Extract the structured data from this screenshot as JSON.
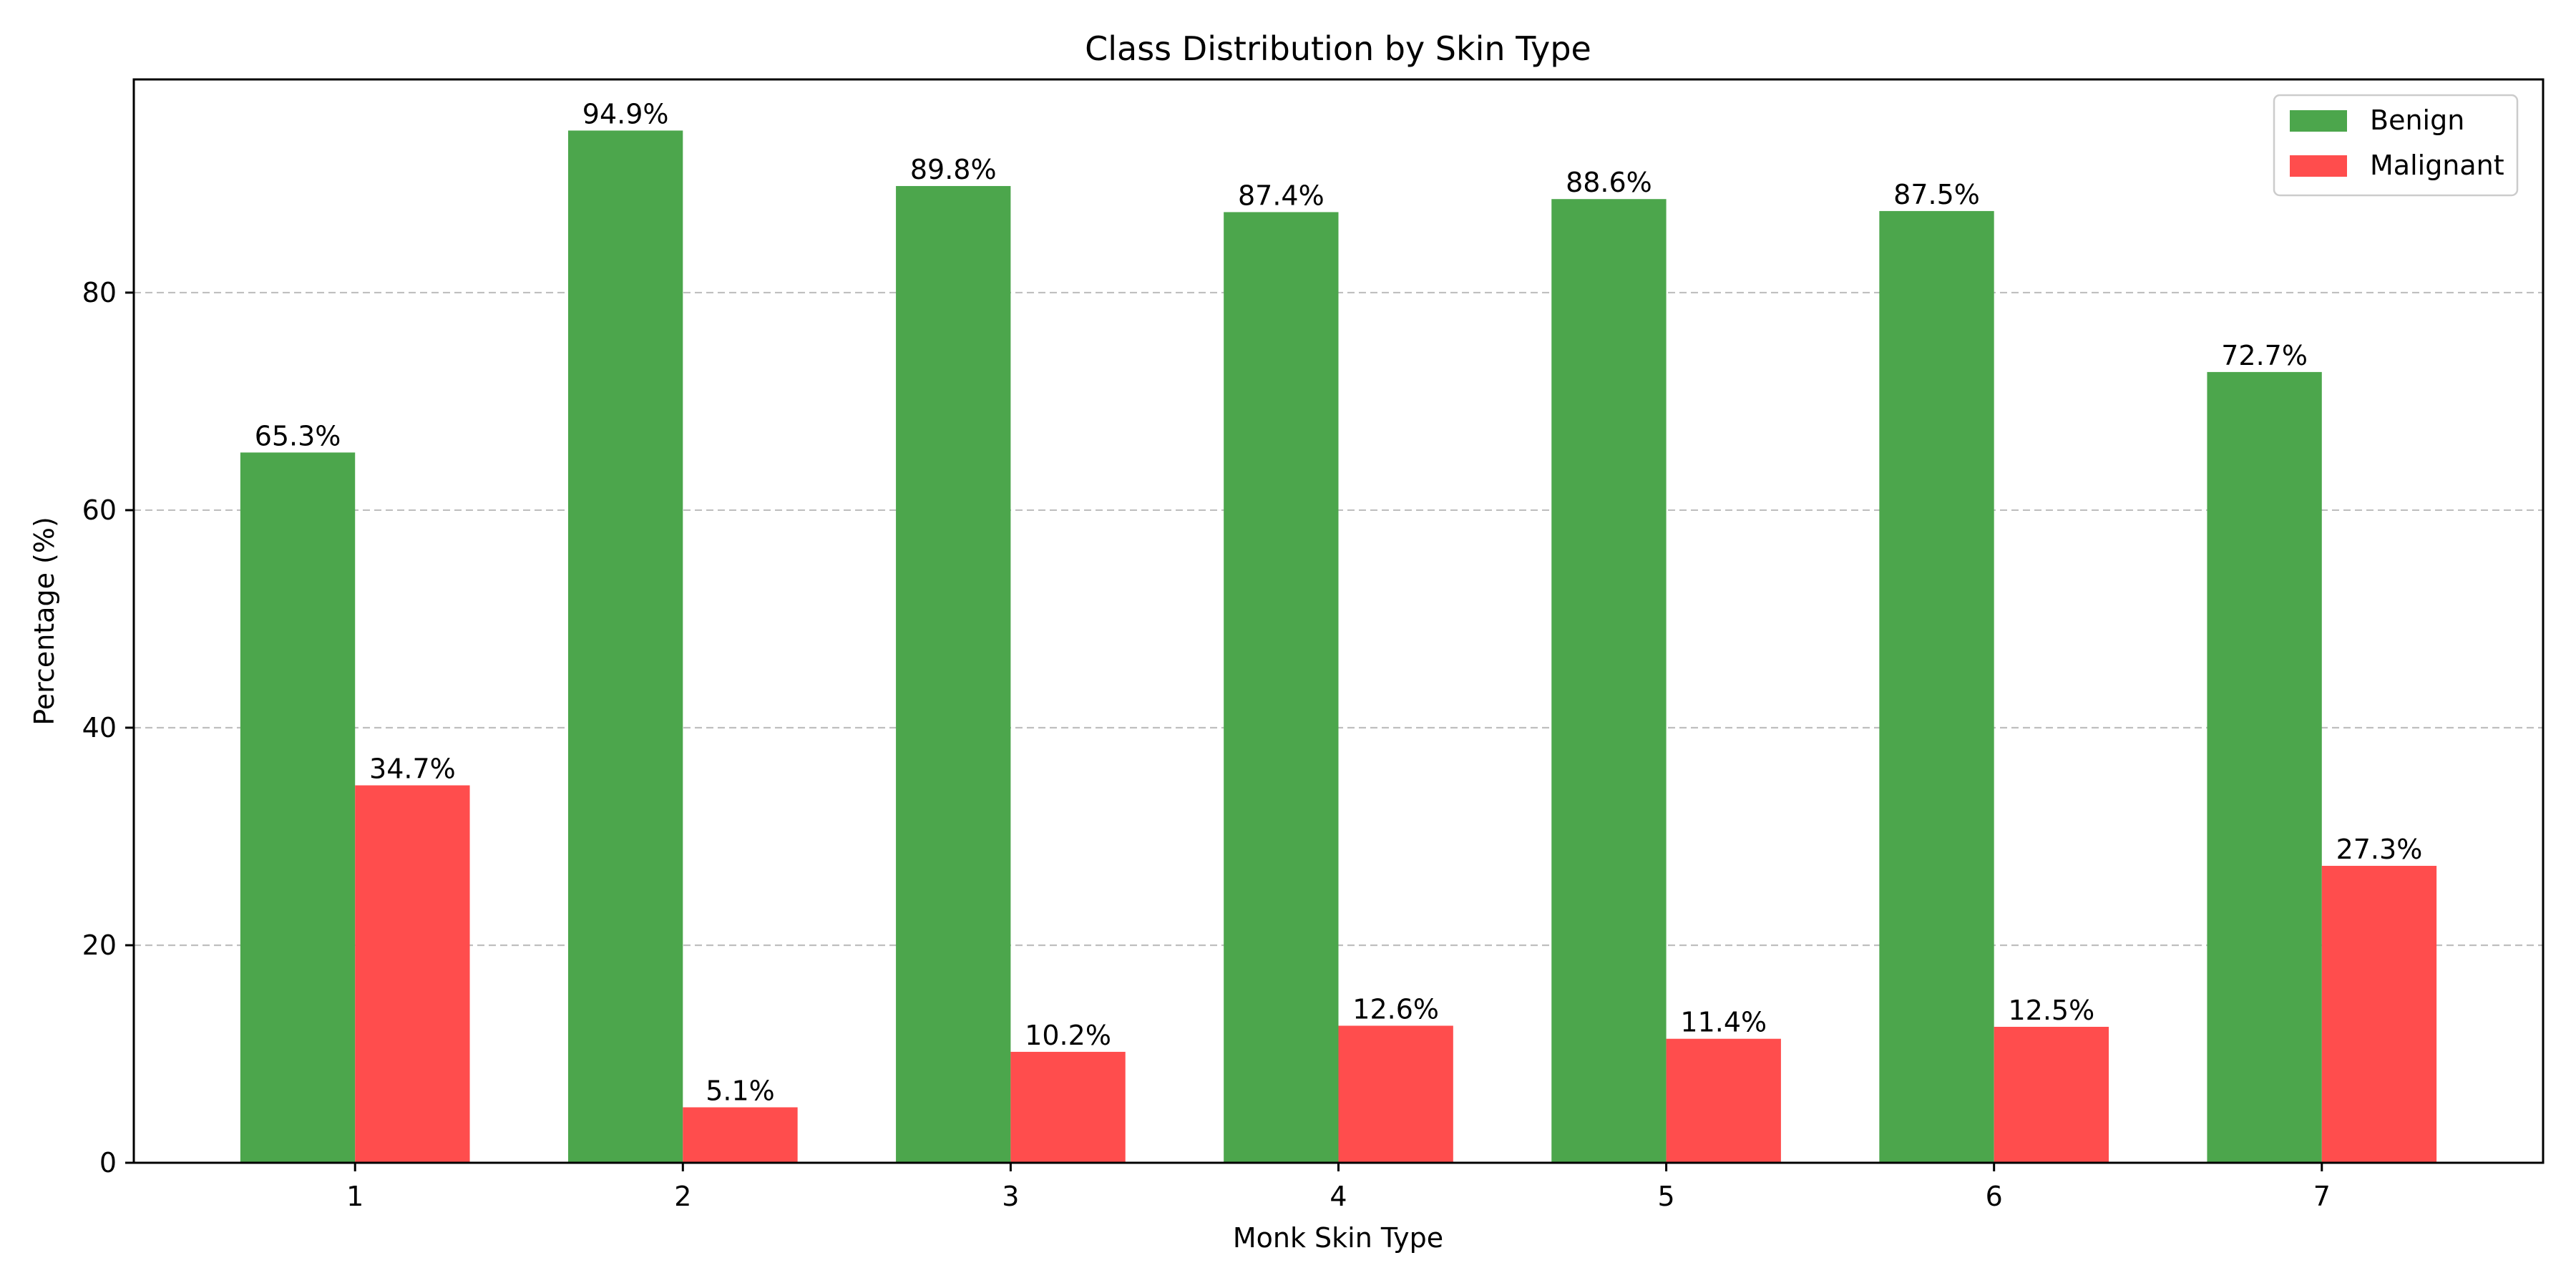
{
  "chart_data": {
    "type": "bar",
    "title": "Class Distribution by Skin Type",
    "xlabel": "Monk Skin Type",
    "ylabel": "Percentage (%)",
    "categories": [
      "1",
      "2",
      "3",
      "4",
      "5",
      "6",
      "7"
    ],
    "series": [
      {
        "name": "Benign",
        "color": "#4ca64c",
        "values": [
          65.3,
          94.9,
          89.8,
          87.4,
          88.6,
          87.5,
          72.7
        ],
        "labels": [
          "65.3%",
          "94.9%",
          "89.8%",
          "87.4%",
          "88.6%",
          "87.5%",
          "72.7%"
        ]
      },
      {
        "name": "Malignant",
        "color": "#ff4d4d",
        "values": [
          34.7,
          5.1,
          10.2,
          12.6,
          11.4,
          12.5,
          27.3
        ],
        "labels": [
          "34.7%",
          "5.1%",
          "10.2%",
          "12.6%",
          "11.4%",
          "12.5%",
          "27.3%"
        ]
      }
    ],
    "ylim": [
      0,
      99.6
    ],
    "yticks": [
      0,
      20,
      40,
      60,
      80
    ],
    "ytick_labels": [
      "0",
      "20",
      "40",
      "60",
      "80"
    ],
    "grid": "y-dashed",
    "legend_position": "top-right"
  }
}
